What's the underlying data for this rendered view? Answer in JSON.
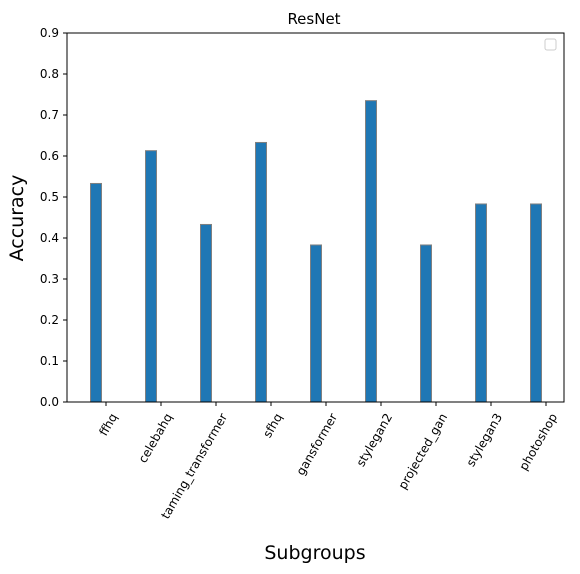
{
  "chart_data": {
    "type": "bar",
    "title": "ResNet",
    "xlabel": "Subgroups",
    "ylabel": "Accuracy",
    "categories": [
      "ffhq",
      "celebahq",
      "taming_transformer",
      "sfhq",
      "gansformer",
      "stylegan2",
      "projected_gan",
      "stylegan3",
      "photoshop"
    ],
    "values": [
      0.533,
      0.613,
      0.433,
      0.633,
      0.383,
      0.735,
      0.383,
      0.483,
      0.483
    ],
    "ylim": [
      0,
      0.9
    ],
    "yticks": [
      "0.0",
      "0.1",
      "0.2",
      "0.3",
      "0.4",
      "0.5",
      "0.6",
      "0.7",
      "0.8",
      "0.9"
    ],
    "grid": false,
    "legend": "top-right, empty",
    "colors": {
      "bar": "#1f77b4",
      "bar_edge": "#808080"
    }
  }
}
